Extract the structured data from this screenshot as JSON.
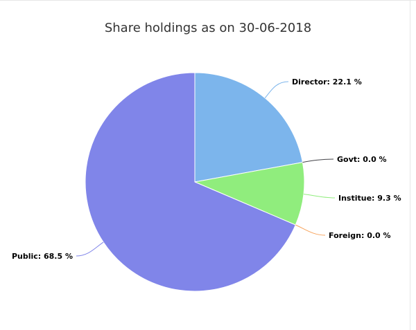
{
  "chart_data": {
    "type": "pie",
    "title": "Share holdings as on 30-06-2018",
    "slices": [
      {
        "label": "Director: 22.1 %",
        "name": "Director",
        "value": 22.1,
        "color": "#7cb5ec",
        "connector": "#7cb5ec"
      },
      {
        "label": "Govt: 0.0 %",
        "name": "Govt",
        "value": 0.0,
        "color": "#434348",
        "connector": "#434348"
      },
      {
        "label": "Institue: 9.3 %",
        "name": "Institue",
        "value": 9.3,
        "color": "#90ed7d",
        "connector": "#90ed7d"
      },
      {
        "label": "Foreign: 0.0 %",
        "name": "Foreign",
        "value": 0.0,
        "color": "#f7a35c",
        "connector": "#f7a35c"
      },
      {
        "label": "Public: 68.5 %",
        "name": "Public",
        "value": 68.5,
        "color": "#8085e9",
        "connector": "#8085e9"
      }
    ]
  }
}
